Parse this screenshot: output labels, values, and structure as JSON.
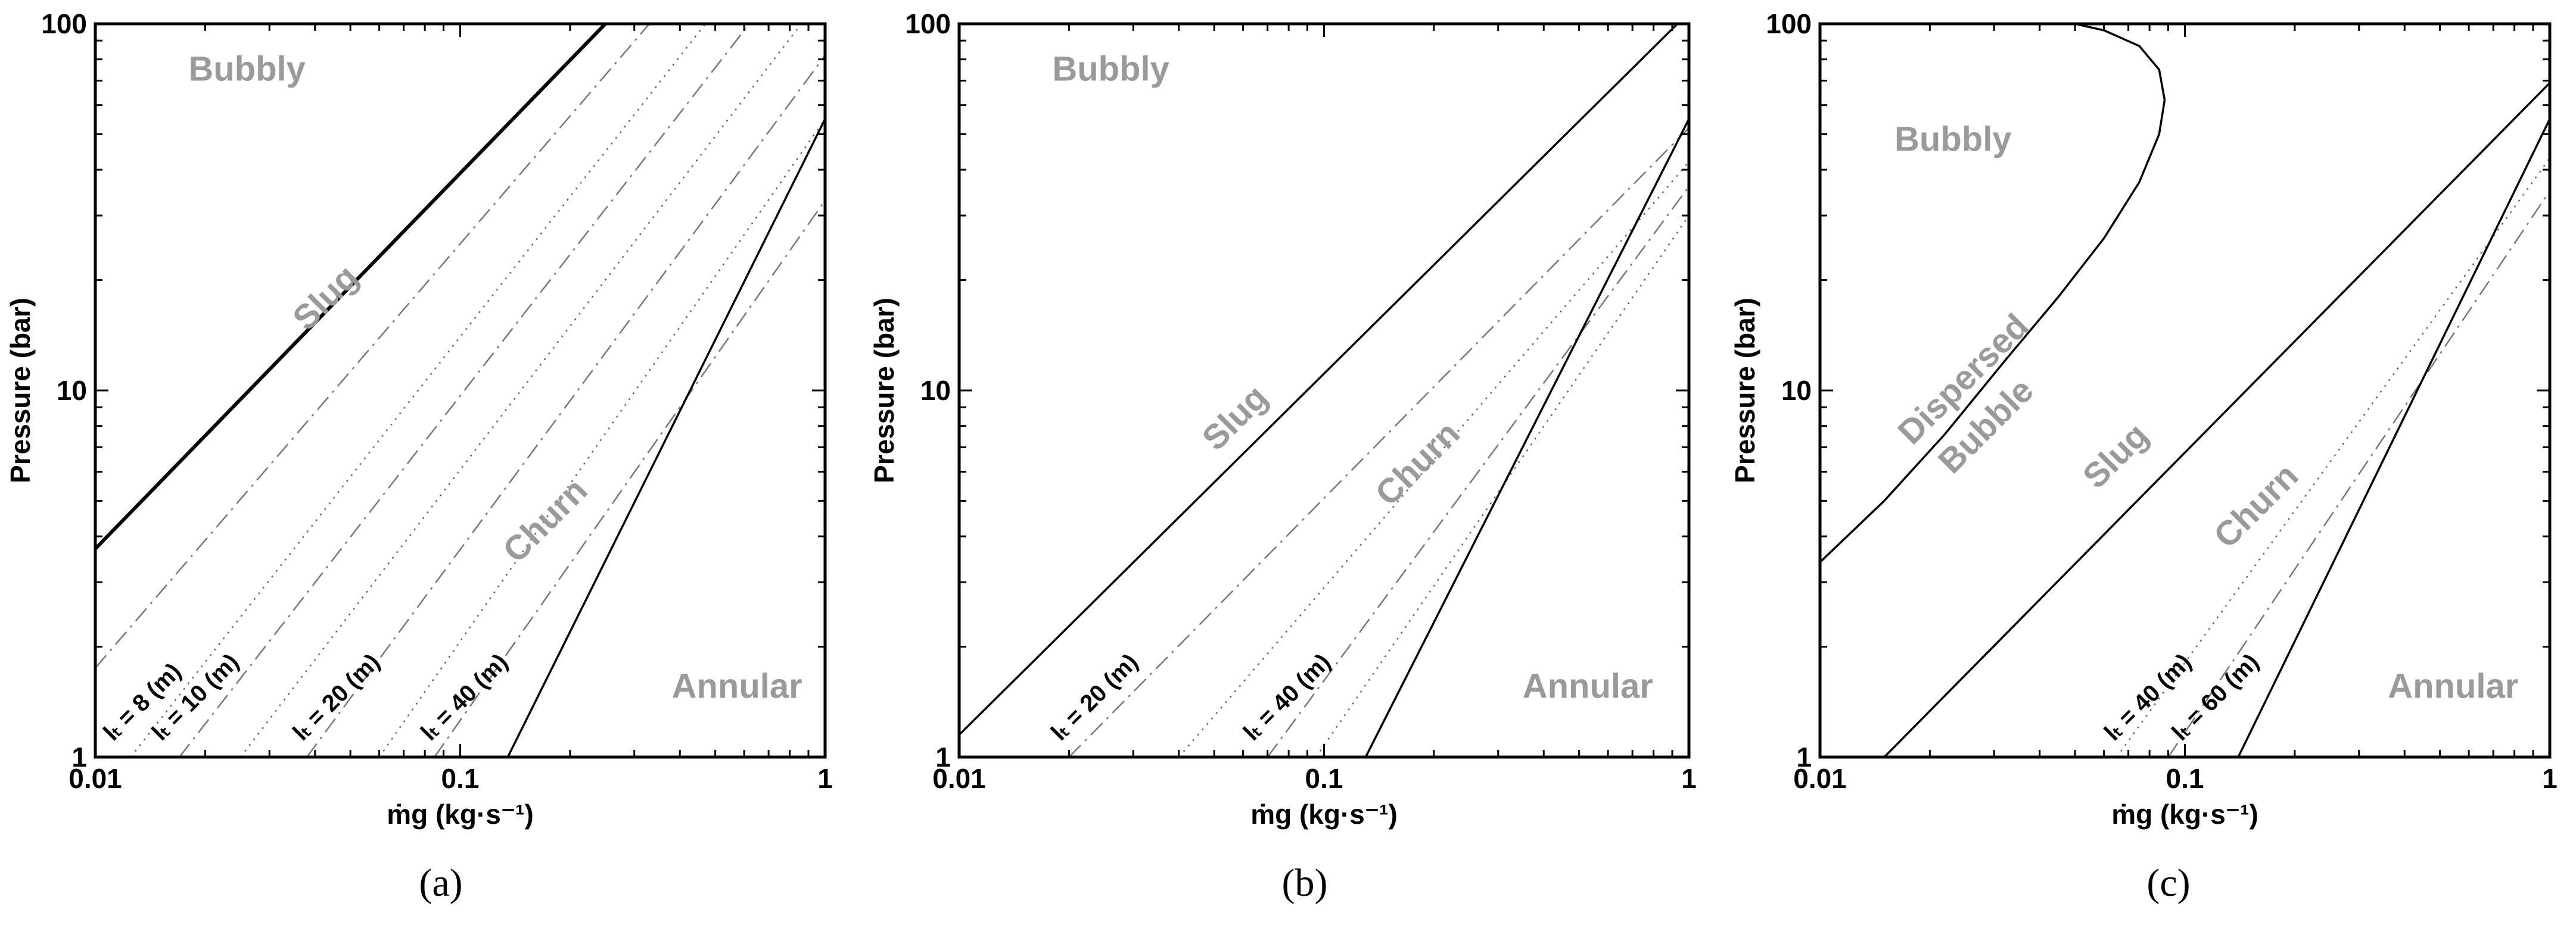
{
  "chart_data": [
    {
      "type": "line",
      "panel": "a",
      "xlabel": "ṁg (kg·s⁻¹)",
      "ylabel": "Pressure (bar)",
      "xscale": "log",
      "yscale": "log",
      "xlim": [
        0.01,
        1
      ],
      "ylim": [
        1,
        100
      ],
      "xticks": [
        "0.01",
        "0.1",
        "1"
      ],
      "yticks": [
        "1",
        "10",
        "100"
      ],
      "regions": [
        {
          "label": "Bubbly",
          "x": 0.018,
          "y": 70
        },
        {
          "label": "Slug",
          "x": 0.045,
          "y": 17
        },
        {
          "label": "Churn",
          "x": 0.18,
          "y": 4.2
        },
        {
          "label": "Annular",
          "x": 0.38,
          "y": 1.45
        }
      ],
      "series": [
        {
          "style": "solid-bold",
          "x": [
            0.01,
            0.25
          ],
          "y": [
            3.7,
            100
          ]
        },
        {
          "style": "dashdot",
          "x": [
            0.01,
            0.33
          ],
          "y": [
            1.75,
            100
          ]
        },
        {
          "style": "dotted",
          "x": [
            0.0125,
            0.47
          ],
          "y": [
            1.0,
            100
          ]
        },
        {
          "style": "dashdot",
          "x": [
            0.017,
            0.62
          ],
          "y": [
            1.0,
            100
          ]
        },
        {
          "style": "dotted",
          "x": [
            0.025,
            0.86
          ],
          "y": [
            1.0,
            100
          ]
        },
        {
          "style": "dashdot",
          "x": [
            0.038,
            1.0
          ],
          "y": [
            1.0,
            82
          ]
        },
        {
          "style": "dotted",
          "x": [
            0.06,
            1.0
          ],
          "y": [
            1.0,
            55
          ]
        },
        {
          "style": "dashdot",
          "x": [
            0.085,
            1.0
          ],
          "y": [
            1.0,
            33
          ]
        },
        {
          "style": "solid",
          "x": [
            0.135,
            1.0
          ],
          "y": [
            1.0,
            55
          ]
        }
      ],
      "line_labels": [
        {
          "text": "lₜ = 8 (m)",
          "x": 0.0112,
          "y": 1.1
        },
        {
          "text": "lₜ = 10 (m)",
          "x": 0.0152,
          "y": 1.1
        },
        {
          "text": "lₜ = 20 (m)",
          "x": 0.037,
          "y": 1.1
        },
        {
          "text": "lₜ = 40 (m)",
          "x": 0.083,
          "y": 1.1
        }
      ],
      "caption": "(a)"
    },
    {
      "type": "line",
      "panel": "b",
      "xlabel": "ṁg (kg·s⁻¹)",
      "ylabel": "Pressure (bar)",
      "xscale": "log",
      "yscale": "log",
      "xlim": [
        0.01,
        1
      ],
      "ylim": [
        1,
        100
      ],
      "xticks": [
        "0.01",
        "0.1",
        "1"
      ],
      "yticks": [
        "1",
        "10",
        "100"
      ],
      "regions": [
        {
          "label": "Bubbly",
          "x": 0.018,
          "y": 70
        },
        {
          "label": "Slug",
          "x": 0.06,
          "y": 8
        },
        {
          "label": "Churn",
          "x": 0.19,
          "y": 6
        },
        {
          "label": "Annular",
          "x": 0.35,
          "y": 1.45
        }
      ],
      "series": [
        {
          "style": "solid",
          "x": [
            0.01,
            0.93
          ],
          "y": [
            1.15,
            100
          ]
        },
        {
          "style": "dashdot",
          "x": [
            0.02,
            1.0
          ],
          "y": [
            1.0,
            52
          ]
        },
        {
          "style": "dotted",
          "x": [
            0.04,
            1.0
          ],
          "y": [
            1.0,
            42
          ]
        },
        {
          "style": "dashdot",
          "x": [
            0.07,
            1.0
          ],
          "y": [
            1.0,
            36
          ]
        },
        {
          "style": "dotted",
          "x": [
            0.095,
            1.0
          ],
          "y": [
            1.0,
            30
          ]
        },
        {
          "style": "solid",
          "x": [
            0.13,
            1.0
          ],
          "y": [
            1.0,
            55
          ]
        }
      ],
      "line_labels": [
        {
          "text": "lₜ = 20 (m)",
          "x": 0.019,
          "y": 1.1
        },
        {
          "text": "lₜ = 40 (m)",
          "x": 0.064,
          "y": 1.1
        }
      ],
      "caption": "(b)"
    },
    {
      "type": "line",
      "panel": "c",
      "xlabel": "ṁg (kg·s⁻¹)",
      "ylabel": "Pressure (bar)",
      "xscale": "log",
      "yscale": "log",
      "xlim": [
        0.01,
        1
      ],
      "ylim": [
        1,
        100
      ],
      "xticks": [
        "0.01",
        "0.1",
        "1"
      ],
      "yticks": [
        "1",
        "10",
        "100"
      ],
      "regions": [
        {
          "label": "Bubbly",
          "x": 0.016,
          "y": 45
        },
        {
          "label": "Dispersed",
          "x": 0.026,
          "y": 10.2
        },
        {
          "label": "Bubble",
          "x": 0.03,
          "y": 7.6
        },
        {
          "label": "Slug",
          "x": 0.068,
          "y": 6.3
        },
        {
          "label": "Churn",
          "x": 0.165,
          "y": 4.6
        },
        {
          "label": "Annular",
          "x": 0.36,
          "y": 1.45
        }
      ],
      "series": [
        {
          "style": "solid",
          "x": [
            0.01,
            0.015,
            0.022,
            0.032,
            0.045,
            0.06,
            0.075,
            0.085,
            0.088,
            0.085,
            0.075,
            0.06,
            0.05
          ],
          "y": [
            3.4,
            5.0,
            7.6,
            12.0,
            18.0,
            26.0,
            37.0,
            50.0,
            62.0,
            75.0,
            87.0,
            96.0,
            100.0
          ]
        },
        {
          "style": "solid",
          "x": [
            0.015,
            1.0
          ],
          "y": [
            1.0,
            69
          ]
        },
        {
          "style": "dotted",
          "x": [
            0.065,
            1.0
          ],
          "y": [
            1.0,
            43
          ]
        },
        {
          "style": "dashdot",
          "x": [
            0.09,
            1.0
          ],
          "y": [
            1.0,
            35
          ]
        },
        {
          "style": "solid",
          "x": [
            0.14,
            1.0
          ],
          "y": [
            1.0,
            55
          ]
        }
      ],
      "line_labels": [
        {
          "text": "lₜ = 40 (m)",
          "x": 0.064,
          "y": 1.1
        },
        {
          "text": "lₜ = 60 (m)",
          "x": 0.098,
          "y": 1.1
        }
      ],
      "caption": "(c)"
    }
  ]
}
